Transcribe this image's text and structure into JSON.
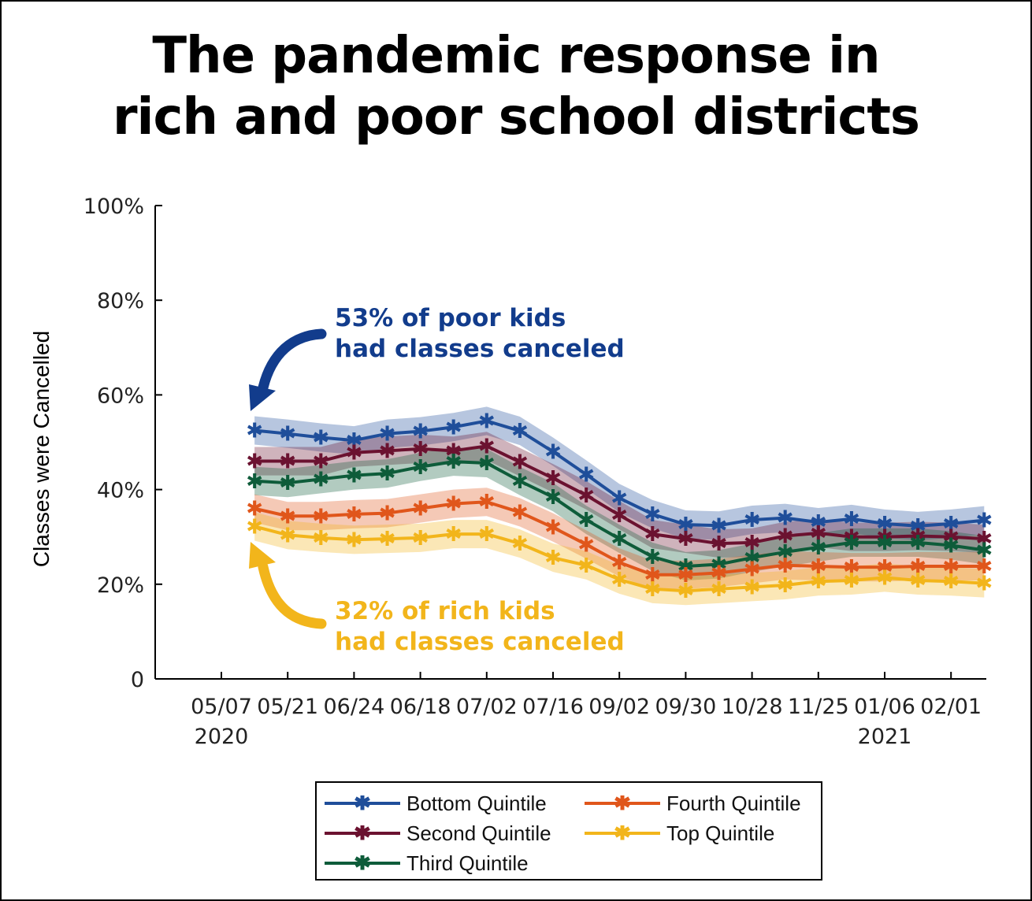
{
  "title": {
    "line1": "The pandemic response in",
    "line2": "rich and poor school districts"
  },
  "annotations": {
    "poor_line1": "53% of poor kids",
    "poor_line2": "had classes canceled",
    "poor_color": "#123c8c",
    "rich_line1": "32% of rich kids",
    "rich_line2": "had classes canceled",
    "rich_color": "#f2b51b"
  },
  "legend": [
    {
      "name": "Bottom Quintile"
    },
    {
      "name": "Fourth Quintile"
    },
    {
      "name": "Second Quintile"
    },
    {
      "name": "Top Quintile"
    },
    {
      "name": "Third Quintile"
    }
  ],
  "chart_data": {
    "type": "line",
    "ylabel": "Classes were Cancelled",
    "xlabel": "",
    "ylim": [
      0,
      100
    ],
    "y_ticks": [
      {
        "value": 0,
        "label": "0"
      },
      {
        "value": 20,
        "label": "20%"
      },
      {
        "value": 40,
        "label": "40%"
      },
      {
        "value": 60,
        "label": "60%"
      },
      {
        "value": 80,
        "label": "80%"
      },
      {
        "value": 100,
        "label": "100%"
      }
    ],
    "x_tick_labels": [
      "05/07",
      "05/21",
      "06/24",
      "06/18",
      "07/02",
      "07/16",
      "09/02",
      "09/30",
      "10/28",
      "11/25",
      "01/06",
      "02/01"
    ],
    "x_year_labels": [
      {
        "at": "05/07",
        "label": "2020"
      },
      {
        "at": "01/06",
        "label": "2021"
      }
    ],
    "x_tick_positions": [
      0,
      2,
      4,
      6,
      8,
      10,
      12,
      14,
      16,
      18,
      20,
      22
    ],
    "x_range": [
      0,
      23.2
    ],
    "x": [
      1,
      2,
      3,
      4,
      5,
      6,
      7,
      8,
      9,
      10,
      11,
      12,
      13,
      14,
      15,
      16,
      17,
      18,
      19,
      20,
      21,
      22,
      23
    ],
    "grid": false,
    "legend_position": "bottom",
    "series": [
      {
        "name": "Bottom Quintile",
        "color": "#1f4e9a",
        "values": [
          52.5,
          51.8,
          51.0,
          50.4,
          51.8,
          52.3,
          53.2,
          54.5,
          52.4,
          48.0,
          43.2,
          38.2,
          34.8,
          32.6,
          32.4,
          33.6,
          34.0,
          33.1,
          33.8,
          32.8,
          32.3,
          32.8,
          33.5
        ]
      },
      {
        "name": "Second Quintile",
        "color": "#6b1230",
        "values": [
          46.0,
          46.0,
          46.0,
          47.8,
          48.2,
          48.6,
          48.2,
          49.2,
          45.8,
          42.4,
          38.8,
          34.6,
          30.6,
          29.6,
          28.6,
          28.8,
          30.2,
          30.8,
          30.0,
          30.0,
          30.2,
          30.0,
          29.6
        ]
      },
      {
        "name": "Third Quintile",
        "color": "#0e5c3a",
        "values": [
          41.8,
          41.4,
          42.2,
          43.0,
          43.4,
          44.8,
          45.9,
          45.6,
          41.8,
          38.4,
          33.6,
          29.6,
          25.8,
          23.8,
          24.2,
          25.6,
          26.8,
          27.8,
          28.8,
          28.8,
          28.8,
          28.2,
          27.2
        ]
      },
      {
        "name": "Fourth Quintile",
        "color": "#e0561b",
        "values": [
          36.0,
          34.4,
          34.4,
          34.8,
          35.0,
          36.0,
          37.0,
          37.4,
          35.2,
          32.0,
          28.4,
          24.6,
          22.0,
          22.0,
          22.4,
          23.2,
          24.0,
          23.8,
          23.6,
          23.6,
          23.8,
          23.8,
          23.8
        ]
      },
      {
        "name": "Top Quintile",
        "color": "#f2b51b",
        "values": [
          32.2,
          30.4,
          29.8,
          29.4,
          29.6,
          29.8,
          30.6,
          30.6,
          28.6,
          25.6,
          24.0,
          21.0,
          19.0,
          18.6,
          19.0,
          19.4,
          19.8,
          20.6,
          20.8,
          21.4,
          20.8,
          20.6,
          20.2
        ]
      }
    ]
  }
}
